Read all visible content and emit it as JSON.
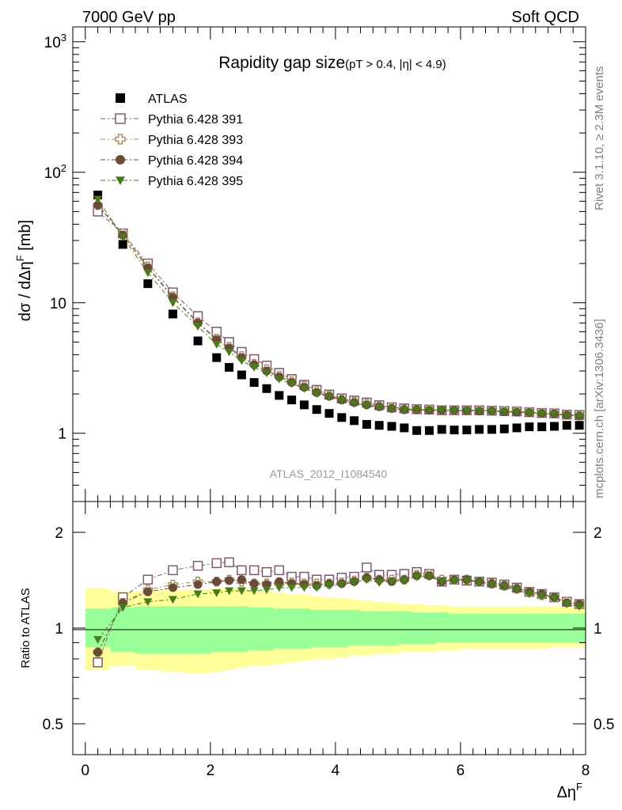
{
  "header": {
    "energy": "7000 GeV pp",
    "category": "Soft QCD",
    "title": "Rapidity gap size",
    "subtitle": "(pT > 0.4, |η| < 4.9)",
    "analysis": "ATLAS_2012_I1084540",
    "side_top": "Rivet 3.1.10, ≥ 2.3M events",
    "side_bottom": "mcplots.cern.ch [arXiv:1306.3436]"
  },
  "legend": [
    {
      "label": "ATLAS"
    },
    {
      "label": "Pythia 6.428 391"
    },
    {
      "label": "Pythia 6.428 393"
    },
    {
      "label": "Pythia 6.428 394"
    },
    {
      "label": "Pythia 6.428 395"
    }
  ],
  "chart_data": [
    {
      "type": "scatter",
      "panel": "main",
      "ylabel": "dσ / dΔη^F [mb]",
      "yscale": "log",
      "ylim": [
        0.3,
        1300
      ],
      "xlim": [
        -0.2,
        8.0
      ],
      "ytick_labels": [
        "1",
        "10",
        "10^2",
        "10^3"
      ],
      "x": [
        0.2,
        0.6,
        1.0,
        1.4,
        1.8,
        2.1,
        2.3,
        2.5,
        2.7,
        2.9,
        3.1,
        3.3,
        3.5,
        3.7,
        3.9,
        4.1,
        4.3,
        4.5,
        4.7,
        4.9,
        5.1,
        5.3,
        5.5,
        5.7,
        5.9,
        6.1,
        6.3,
        6.5,
        6.7,
        6.9,
        7.1,
        7.3,
        7.5,
        7.7,
        7.9
      ],
      "series": [
        {
          "name": "ATLAS",
          "color": "#000000",
          "marker": "square-filled",
          "values": [
            67,
            28,
            14,
            8.2,
            5.1,
            3.8,
            3.2,
            2.8,
            2.45,
            2.2,
            1.95,
            1.8,
            1.65,
            1.52,
            1.42,
            1.32,
            1.25,
            1.17,
            1.15,
            1.13,
            1.1,
            1.05,
            1.05,
            1.07,
            1.06,
            1.06,
            1.07,
            1.07,
            1.08,
            1.1,
            1.12,
            1.12,
            1.13,
            1.15,
            1.15
          ]
        },
        {
          "name": "Pythia 6.428 391",
          "color": "#7f5a6f",
          "marker": "square-open",
          "values": [
            50,
            34,
            20,
            12,
            7.9,
            6.0,
            5.0,
            4.2,
            3.7,
            3.3,
            2.9,
            2.6,
            2.35,
            2.15,
            1.98,
            1.85,
            1.78,
            1.72,
            1.64,
            1.58,
            1.55,
            1.53,
            1.52,
            1.5,
            1.5,
            1.5,
            1.5,
            1.49,
            1.48,
            1.47,
            1.45,
            1.43,
            1.42,
            1.39,
            1.38
          ]
        },
        {
          "name": "Pythia 6.428 393",
          "color": "#9f8f5f",
          "marker": "cross-open",
          "values": [
            56,
            34,
            19,
            11.2,
            7.1,
            5.3,
            4.6,
            3.9,
            3.4,
            3.1,
            2.75,
            2.5,
            2.3,
            2.1,
            1.95,
            1.82,
            1.75,
            1.68,
            1.62,
            1.57,
            1.53,
            1.52,
            1.52,
            1.5,
            1.5,
            1.5,
            1.5,
            1.49,
            1.48,
            1.47,
            1.45,
            1.43,
            1.42,
            1.39,
            1.37
          ]
        },
        {
          "name": "Pythia 6.428 394",
          "color": "#6b4a3a",
          "marker": "circle-filled",
          "values": [
            56,
            33,
            18.5,
            11,
            7.0,
            5.2,
            4.5,
            3.8,
            3.35,
            3.0,
            2.7,
            2.45,
            2.25,
            2.05,
            1.92,
            1.8,
            1.72,
            1.65,
            1.6,
            1.55,
            1.52,
            1.52,
            1.5,
            1.5,
            1.5,
            1.49,
            1.48,
            1.48,
            1.46,
            1.45,
            1.44,
            1.42,
            1.41,
            1.38,
            1.36
          ]
        },
        {
          "name": "Pythia 6.428 395",
          "color": "#4a7a1a",
          "marker": "triangle-down-filled",
          "values": [
            62,
            32,
            17,
            10,
            6.6,
            4.8,
            4.2,
            3.6,
            3.2,
            2.9,
            2.6,
            2.4,
            2.2,
            2.02,
            1.9,
            1.78,
            1.7,
            1.63,
            1.58,
            1.53,
            1.5,
            1.5,
            1.5,
            1.5,
            1.49,
            1.49,
            1.48,
            1.47,
            1.46,
            1.45,
            1.43,
            1.41,
            1.4,
            1.37,
            1.35
          ]
        }
      ]
    },
    {
      "type": "scatter",
      "panel": "ratio",
      "ylabel": "Ratio to ATLAS",
      "xlabel": "Δη^F",
      "yscale": "log",
      "ylim": [
        0.4,
        2.5
      ],
      "xlim": [
        -0.2,
        8.0
      ],
      "xtick_labels": [
        "0",
        "2",
        "4",
        "6",
        "8"
      ],
      "ytick_labels": [
        "0.5",
        "1",
        "2"
      ],
      "x": [
        0.2,
        0.6,
        1.0,
        1.4,
        1.8,
        2.1,
        2.3,
        2.5,
        2.7,
        2.9,
        3.1,
        3.3,
        3.5,
        3.7,
        3.9,
        4.1,
        4.3,
        4.5,
        4.7,
        4.9,
        5.1,
        5.3,
        5.5,
        5.7,
        5.9,
        6.1,
        6.3,
        6.5,
        6.7,
        6.9,
        7.1,
        7.3,
        7.5,
        7.7,
        7.9
      ],
      "band_edges": [
        0,
        0.4,
        0.8,
        1.2,
        1.6,
        2.0,
        2.2,
        2.4,
        2.6,
        2.8,
        3.0,
        3.2,
        3.4,
        3.6,
        3.8,
        4.0,
        4.2,
        4.4,
        4.6,
        4.8,
        5.0,
        5.2,
        5.4,
        5.6,
        5.8,
        6.0,
        6.2,
        6.4,
        6.6,
        6.8,
        7.0,
        7.2,
        7.4,
        7.6,
        7.8,
        8.0
      ],
      "band_inner": [
        [
          0.87,
          1.15
        ],
        [
          0.84,
          1.16
        ],
        [
          0.83,
          1.17
        ],
        [
          0.83,
          1.17
        ],
        [
          0.83,
          1.17
        ],
        [
          0.84,
          1.17
        ],
        [
          0.84,
          1.17
        ],
        [
          0.84,
          1.17
        ],
        [
          0.85,
          1.16
        ],
        [
          0.85,
          1.16
        ],
        [
          0.86,
          1.15
        ],
        [
          0.86,
          1.15
        ],
        [
          0.86,
          1.15
        ],
        [
          0.87,
          1.14
        ],
        [
          0.87,
          1.14
        ],
        [
          0.87,
          1.14
        ],
        [
          0.88,
          1.14
        ],
        [
          0.88,
          1.13
        ],
        [
          0.88,
          1.13
        ],
        [
          0.88,
          1.13
        ],
        [
          0.89,
          1.13
        ],
        [
          0.89,
          1.12
        ],
        [
          0.89,
          1.12
        ],
        [
          0.9,
          1.12
        ],
        [
          0.9,
          1.11
        ],
        [
          0.9,
          1.11
        ],
        [
          0.9,
          1.11
        ],
        [
          0.9,
          1.11
        ],
        [
          0.9,
          1.11
        ],
        [
          0.9,
          1.11
        ],
        [
          0.9,
          1.11
        ],
        [
          0.9,
          1.11
        ],
        [
          0.9,
          1.11
        ],
        [
          0.9,
          1.11
        ],
        [
          0.9,
          1.11
        ]
      ],
      "band_outer": [
        [
          0.74,
          1.33
        ],
        [
          0.76,
          1.3
        ],
        [
          0.74,
          1.31
        ],
        [
          0.73,
          1.32
        ],
        [
          0.72,
          1.32
        ],
        [
          0.73,
          1.33
        ],
        [
          0.74,
          1.34
        ],
        [
          0.75,
          1.33
        ],
        [
          0.76,
          1.31
        ],
        [
          0.76,
          1.31
        ],
        [
          0.77,
          1.29
        ],
        [
          0.78,
          1.28
        ],
        [
          0.79,
          1.27
        ],
        [
          0.8,
          1.26
        ],
        [
          0.8,
          1.25
        ],
        [
          0.81,
          1.24
        ],
        [
          0.82,
          1.23
        ],
        [
          0.82,
          1.22
        ],
        [
          0.83,
          1.21
        ],
        [
          0.83,
          1.2
        ],
        [
          0.84,
          1.19
        ],
        [
          0.84,
          1.19
        ],
        [
          0.84,
          1.18
        ],
        [
          0.85,
          1.18
        ],
        [
          0.85,
          1.17
        ],
        [
          0.86,
          1.17
        ],
        [
          0.86,
          1.17
        ],
        [
          0.86,
          1.17
        ],
        [
          0.86,
          1.17
        ],
        [
          0.86,
          1.17
        ],
        [
          0.86,
          1.17
        ],
        [
          0.86,
          1.17
        ],
        [
          0.87,
          1.17
        ],
        [
          0.87,
          1.17
        ],
        [
          0.87,
          1.17
        ]
      ],
      "series": [
        {
          "name": "Pythia 6.428 391",
          "color": "#7f5a6f",
          "marker": "square-open",
          "values": [
            0.78,
            1.25,
            1.42,
            1.52,
            1.57,
            1.6,
            1.61,
            1.52,
            1.52,
            1.5,
            1.52,
            1.45,
            1.45,
            1.42,
            1.42,
            1.44,
            1.45,
            1.55,
            1.47,
            1.47,
            1.48,
            1.5,
            1.48,
            1.4,
            1.42,
            1.41,
            1.4,
            1.39,
            1.37,
            1.34,
            1.3,
            1.28,
            1.25,
            1.21,
            1.19
          ]
        },
        {
          "name": "Pythia 6.428 393",
          "color": "#9f8f5f",
          "marker": "cross-open",
          "values": [
            0.84,
            1.2,
            1.32,
            1.37,
            1.4,
            1.4,
            1.42,
            1.4,
            1.38,
            1.38,
            1.38,
            1.39,
            1.38,
            1.38,
            1.38,
            1.39,
            1.41,
            1.44,
            1.42,
            1.42,
            1.42,
            1.47,
            1.48,
            1.42,
            1.42,
            1.42,
            1.4,
            1.38,
            1.36,
            1.33,
            1.3,
            1.27,
            1.25,
            1.21,
            1.19
          ]
        },
        {
          "name": "Pythia 6.428 394",
          "color": "#6b4a3a",
          "marker": "circle-filled",
          "values": [
            0.84,
            1.2,
            1.3,
            1.34,
            1.37,
            1.4,
            1.41,
            1.42,
            1.38,
            1.37,
            1.4,
            1.38,
            1.37,
            1.36,
            1.38,
            1.38,
            1.4,
            1.44,
            1.42,
            1.4,
            1.42,
            1.46,
            1.46,
            1.4,
            1.42,
            1.42,
            1.4,
            1.38,
            1.36,
            1.33,
            1.3,
            1.28,
            1.25,
            1.2,
            1.19
          ]
        },
        {
          "name": "Pythia 6.428 395",
          "color": "#4a7a1a",
          "marker": "triangle-down-filled",
          "values": [
            0.92,
            1.16,
            1.21,
            1.23,
            1.28,
            1.29,
            1.31,
            1.31,
            1.31,
            1.32,
            1.34,
            1.34,
            1.34,
            1.34,
            1.36,
            1.37,
            1.39,
            1.42,
            1.39,
            1.4,
            1.41,
            1.45,
            1.45,
            1.4,
            1.41,
            1.41,
            1.39,
            1.37,
            1.35,
            1.32,
            1.28,
            1.26,
            1.24,
            1.19,
            1.17
          ]
        }
      ]
    }
  ]
}
